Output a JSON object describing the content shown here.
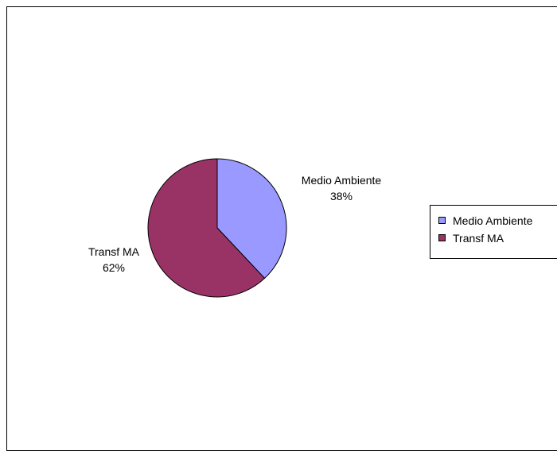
{
  "chart_data": {
    "type": "pie",
    "categories": [
      "Medio Ambiente",
      "Transf MA"
    ],
    "values": [
      38,
      62
    ],
    "labels": [
      {
        "name": "Medio Ambiente",
        "percent": "38%"
      },
      {
        "name": "Transf MA",
        "percent": "62%"
      }
    ],
    "colors": [
      "#9999ff",
      "#993366"
    ],
    "legend": {
      "placement": "right",
      "items": [
        {
          "label": "Medio Ambiente",
          "color": "#9999ff"
        },
        {
          "label": "Transf MA",
          "color": "#993366"
        }
      ]
    }
  }
}
